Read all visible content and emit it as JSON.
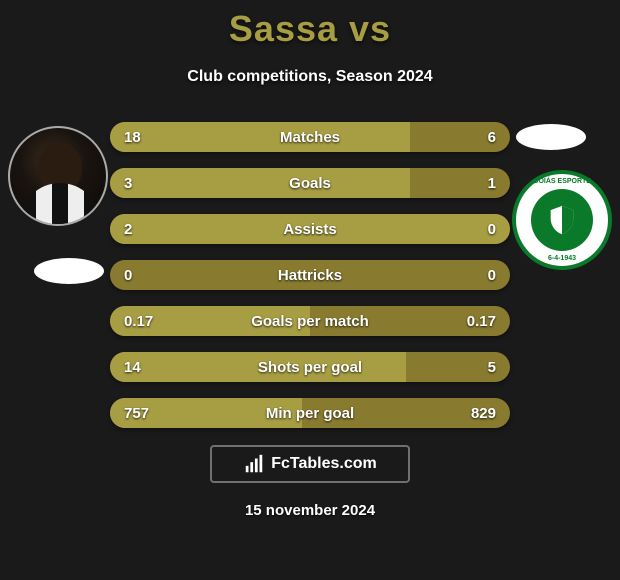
{
  "header": {
    "title": "Sassa vs",
    "title_color": "#a79d43",
    "subtitle": "Club competitions, Season 2024"
  },
  "player_left": {
    "name": "Sassa"
  },
  "club_right": {
    "name": "Goiás Esporte Clube",
    "text_top": "GOIÁS ESPORTE",
    "text_bot": "6-4-1943",
    "outer_bg": "#ffffff",
    "ring_color": "#0a7a2a",
    "inner_bg": "#0a7a2a"
  },
  "stats": {
    "bar_bg": "#887b2f",
    "fill_color": "#a79d43",
    "text_color": "#ffffff",
    "rows": [
      {
        "label": "Matches",
        "left": "18",
        "right": "6",
        "left_pct": 75,
        "right_pct": 25
      },
      {
        "label": "Goals",
        "left": "3",
        "right": "1",
        "left_pct": 75,
        "right_pct": 25
      },
      {
        "label": "Assists",
        "left": "2",
        "right": "0",
        "left_pct": 100,
        "right_pct": 0
      },
      {
        "label": "Hattricks",
        "left": "0",
        "right": "0",
        "left_pct": 0,
        "right_pct": 0
      },
      {
        "label": "Goals per match",
        "left": "0.17",
        "right": "0.17",
        "left_pct": 50,
        "right_pct": 50
      },
      {
        "label": "Shots per goal",
        "left": "14",
        "right": "5",
        "left_pct": 74,
        "right_pct": 26
      },
      {
        "label": "Min per goal",
        "left": "757",
        "right": "829",
        "left_pct": 48,
        "right_pct": 52
      }
    ]
  },
  "brand": {
    "text": "FcTables.com"
  },
  "date": "15 november 2024",
  "colors": {
    "page_bg": "#1a1a1a",
    "accent": "#a79d43",
    "text": "#ffffff"
  }
}
